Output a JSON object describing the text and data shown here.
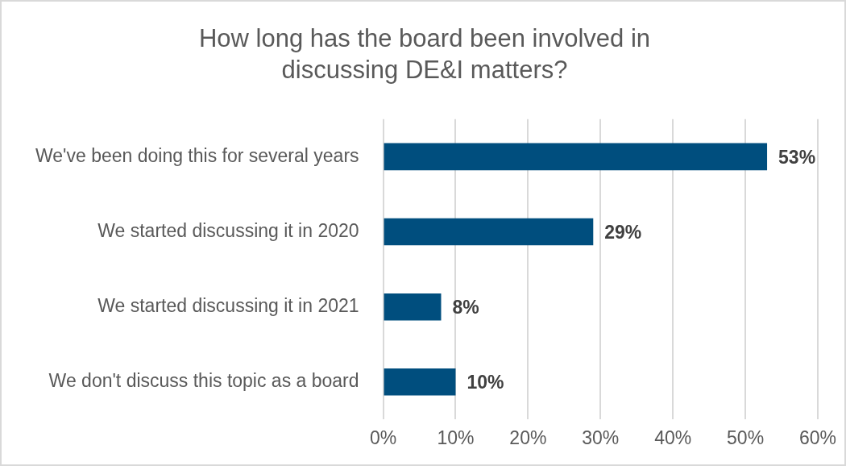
{
  "chart_data": {
    "type": "bar",
    "orientation": "horizontal",
    "title": "How long has the board been involved in discussing DE&I matters?",
    "categories": [
      "We've been doing this for several years",
      "We started discussing it in 2020",
      "We started discussing it in 2021",
      "We don't discuss this topic as a board"
    ],
    "values": [
      53,
      29,
      8,
      10
    ],
    "value_labels": [
      "53%",
      "29%",
      "8%",
      "10%"
    ],
    "color": "#004e7e",
    "xlim": [
      0,
      60
    ],
    "xticks": [
      {
        "value": 0,
        "label": "0%"
      },
      {
        "value": 10,
        "label": "10%"
      },
      {
        "value": 20,
        "label": "20%"
      },
      {
        "value": 30,
        "label": "30%"
      },
      {
        "value": 40,
        "label": "40%"
      },
      {
        "value": 50,
        "label": "50%"
      },
      {
        "value": 60,
        "label": "60%"
      }
    ],
    "grid": "x",
    "legend": false
  }
}
